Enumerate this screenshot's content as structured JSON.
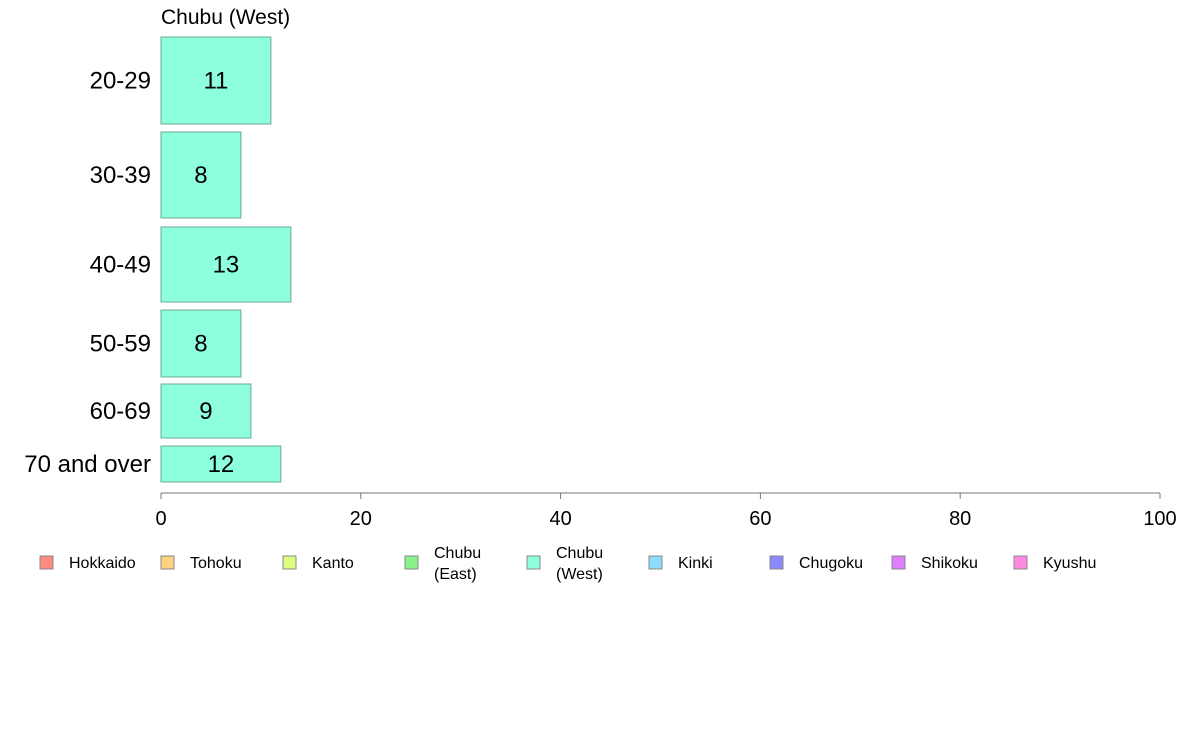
{
  "chart_data": {
    "type": "bar",
    "orientation": "horizontal",
    "title": "Chubu (West)",
    "categories": [
      "20-29",
      "30-39",
      "40-49",
      "50-59",
      "60-69",
      "70 and over"
    ],
    "values": [
      11,
      8,
      13,
      8,
      9,
      12
    ],
    "value_labels": [
      "11",
      "8",
      "13",
      "8",
      "9",
      "12"
    ],
    "bar_color": "#8dffdd",
    "bar_stroke": "#6aa898",
    "xlim": [
      0,
      100
    ],
    "x_ticks": [
      0,
      20,
      40,
      60,
      80,
      100
    ],
    "x_tick_labels": [
      "0",
      "20",
      "40",
      "60",
      "80",
      "100"
    ],
    "xlabel": "",
    "ylabel": "",
    "grid": false,
    "legend_placement": "bottom",
    "legend": [
      {
        "label": "Hokkaido",
        "color": "#ff8a80"
      },
      {
        "label": "Tohoku",
        "color": "#ffd280"
      },
      {
        "label": "Kanto",
        "color": "#dcff80"
      },
      {
        "label": "Chubu\n(East)",
        "color": "#8af28a"
      },
      {
        "label": "Chubu\n(West)",
        "color": "#8dffdd"
      },
      {
        "label": "Kinki",
        "color": "#8ddcff"
      },
      {
        "label": "Chugoku",
        "color": "#8a8aff"
      },
      {
        "label": "Shikoku",
        "color": "#dd80ff"
      },
      {
        "label": "Kyushu",
        "color": "#ff8ae0"
      }
    ]
  }
}
